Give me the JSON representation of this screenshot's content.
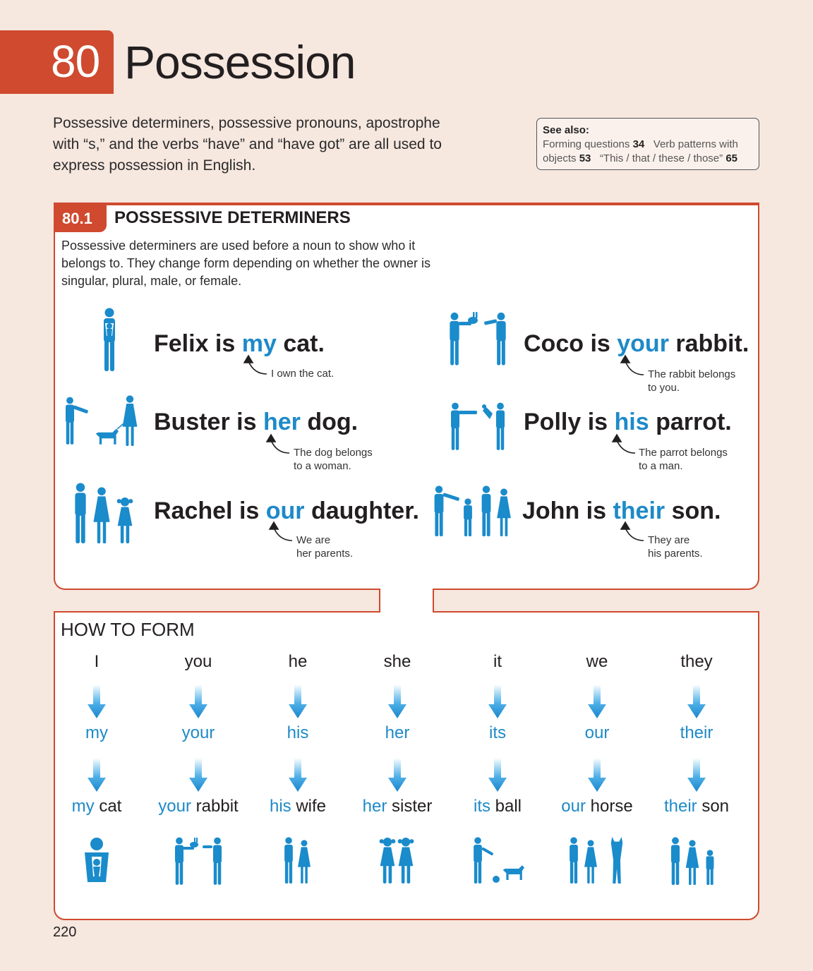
{
  "chapter": {
    "number": "80",
    "title": "Possession"
  },
  "intro": "Possessive determiners, possessive pronouns, apostrophe with “s,” and the verbs “have” and “have got” are all used to express possession in English.",
  "see_also": {
    "title": "See also:",
    "item1_text": "Forming questions",
    "item1_page": "34",
    "item2_text_a": "Verb patterns with",
    "item2_text_b": "objects",
    "item2_page": "53",
    "item3_text": "“This / that / these / those”",
    "item3_page": "65"
  },
  "section": {
    "number": "80.1",
    "title": "POSSESSIVE DETERMINERS",
    "description": "Possessive determiners are used before a noun to show who it belongs to. They change form depending on whether the owner is singular, plural, male, or female."
  },
  "examples": [
    {
      "pre": "Felix is ",
      "det": "my",
      "post": " cat.",
      "note1": "I own the cat.",
      "note2": ""
    },
    {
      "pre": "Coco is ",
      "det": "your",
      "post": " rabbit.",
      "note1": "The rabbit belongs",
      "note2": "to you."
    },
    {
      "pre": "Buster is ",
      "det": "her",
      "post": " dog.",
      "note1": "The dog belongs",
      "note2": "to a woman."
    },
    {
      "pre": "Polly is ",
      "det": "his",
      "post": " parrot.",
      "note1": "The parrot belongs",
      "note2": "to a man."
    },
    {
      "pre": "Rachel is ",
      "det": "our",
      "post": " daughter.",
      "note1": "We are",
      "note2": "her parents."
    },
    {
      "pre": "John is ",
      "det": "their",
      "post": " son.",
      "note1": "They are",
      "note2": "his parents."
    }
  ],
  "how_to_form": {
    "title": "HOW TO FORM",
    "columns": [
      {
        "pronoun": "I",
        "determiner": "my",
        "det": "my",
        "noun": " cat",
        "icon": "person-holding-cat-icon"
      },
      {
        "pronoun": "you",
        "determiner": "your",
        "det": "your",
        "noun": " rabbit",
        "icon": "person-giving-rabbit-icon"
      },
      {
        "pronoun": "he",
        "determiner": "his",
        "det": "his",
        "noun": " wife",
        "icon": "couple-icon"
      },
      {
        "pronoun": "she",
        "determiner": "her",
        "det": "her",
        "noun": " sister",
        "icon": "two-girls-icon"
      },
      {
        "pronoun": "it",
        "determiner": "its",
        "det": "its",
        "noun": " ball",
        "icon": "man-dog-ball-icon"
      },
      {
        "pronoun": "we",
        "determiner": "our",
        "det": "our",
        "noun": " horse",
        "icon": "couple-horse-icon"
      },
      {
        "pronoun": "they",
        "determiner": "their",
        "det": "their",
        "noun": " son",
        "icon": "family-icon"
      }
    ]
  },
  "page_number": "220",
  "colors": {
    "accent": "#cf4a2f",
    "highlight": "#1e8ac8",
    "figure": "#1a8bcb",
    "background": "#f6e7df"
  }
}
